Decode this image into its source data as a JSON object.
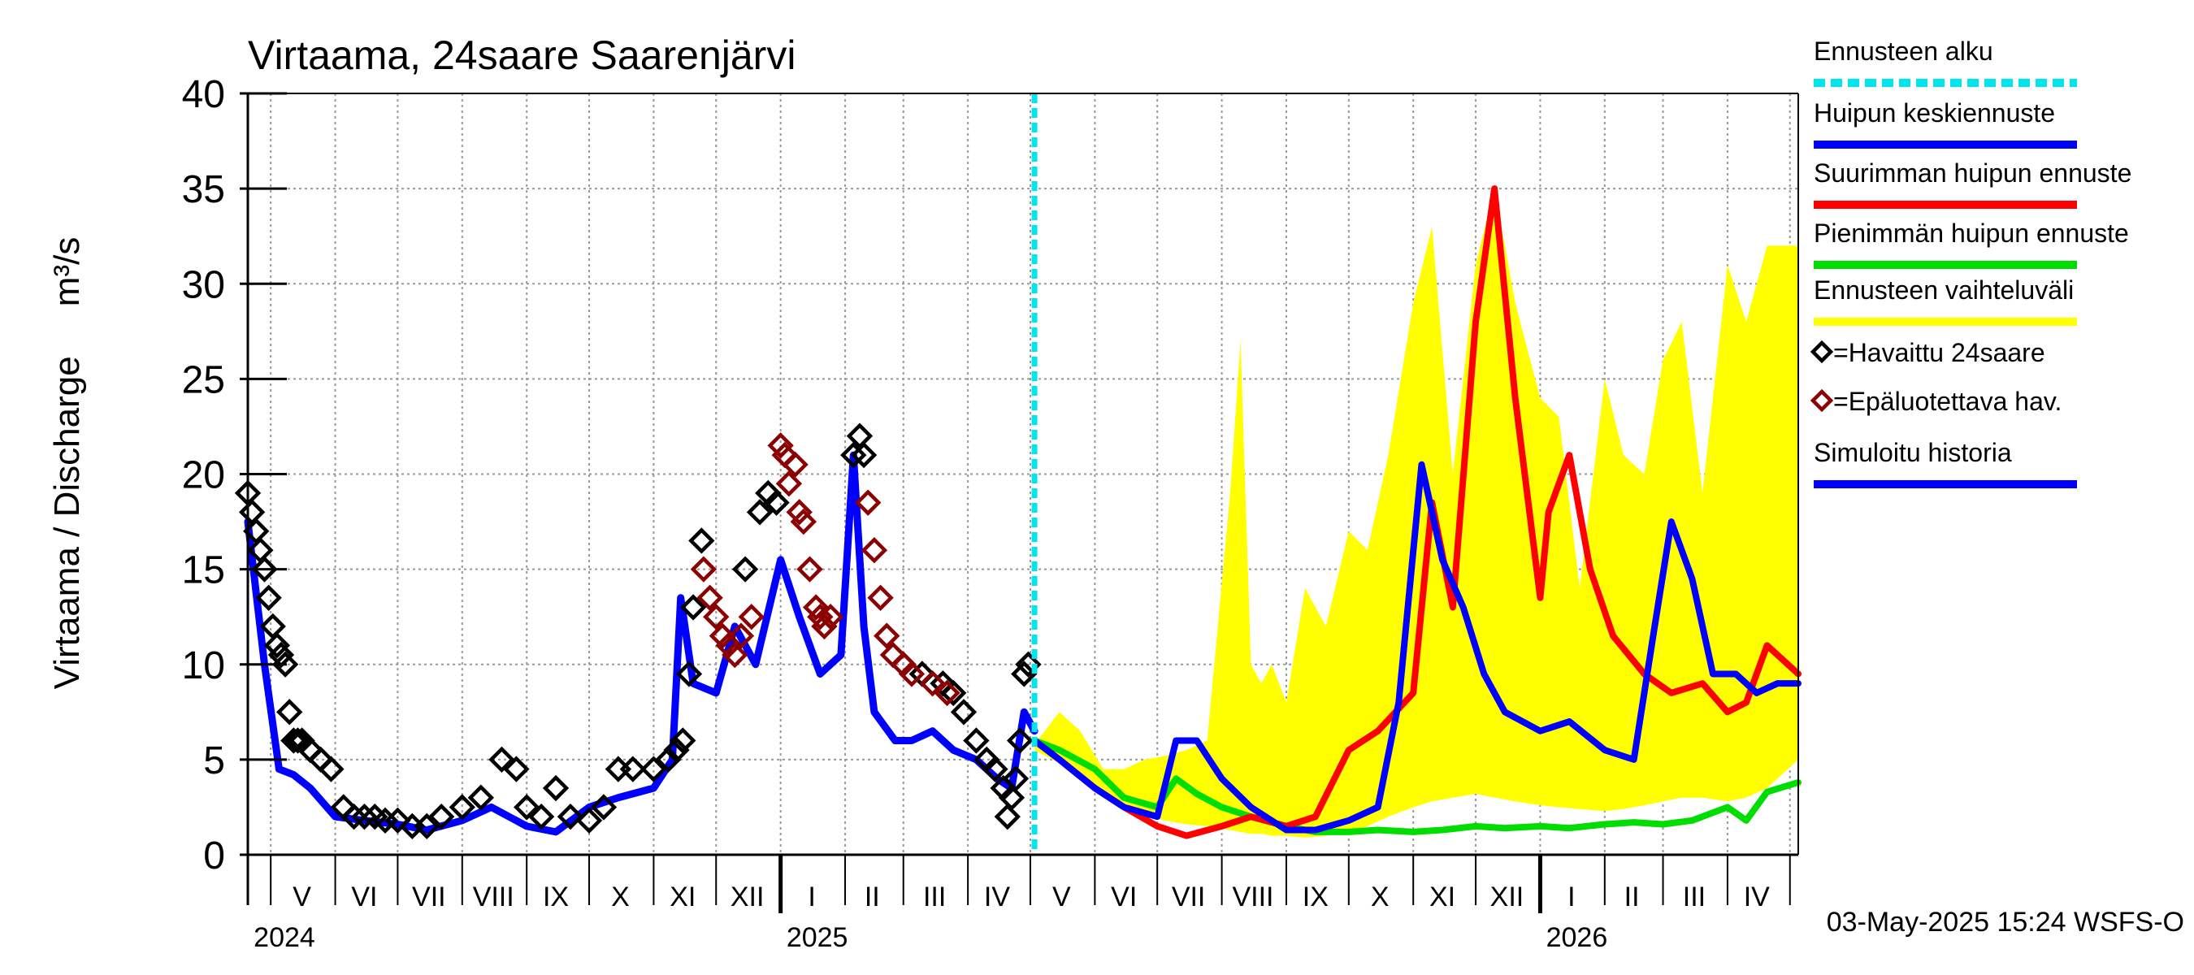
{
  "colors": {
    "observed": "#000000",
    "unreliable": "#8b0000",
    "simulated": "#0000ff",
    "mean_forecast": "#0000ff",
    "max_forecast": "#ff0000",
    "min_forecast": "#00dd00",
    "range": "#ffff00",
    "forecast_start": "#00e5ee",
    "grid": "#999999"
  },
  "chart_data": {
    "type": "line",
    "title": "Virtaama, 24saare Saarenjärvi",
    "ylabel": "Virtaama / Discharge     m³/s",
    "ylim": [
      0,
      40
    ],
    "yticks": [
      0,
      5,
      10,
      15,
      20,
      25,
      30,
      35,
      40
    ],
    "xlim": [
      "2024-04-20",
      "2026-05-05"
    ],
    "forecast_start": "2025-05-03",
    "grid": true,
    "legend_position": "right",
    "month_labels": [
      {
        "label": "V",
        "date": "2024-05-16"
      },
      {
        "label": "VI",
        "date": "2024-06-15"
      },
      {
        "label": "VII",
        "date": "2024-07-16"
      },
      {
        "label": "VIII",
        "date": "2024-08-16"
      },
      {
        "label": "IX",
        "date": "2024-09-15"
      },
      {
        "label": "X",
        "date": "2024-10-16"
      },
      {
        "label": "XI",
        "date": "2024-11-15"
      },
      {
        "label": "XII",
        "date": "2024-12-16"
      },
      {
        "label": "I",
        "date": "2025-01-16"
      },
      {
        "label": "II",
        "date": "2025-02-14"
      },
      {
        "label": "III",
        "date": "2025-03-16"
      },
      {
        "label": "IV",
        "date": "2025-04-15"
      },
      {
        "label": "V",
        "date": "2025-05-16"
      },
      {
        "label": "VI",
        "date": "2025-06-15"
      },
      {
        "label": "VII",
        "date": "2025-07-16"
      },
      {
        "label": "VIII",
        "date": "2025-08-16"
      },
      {
        "label": "IX",
        "date": "2025-09-15"
      },
      {
        "label": "X",
        "date": "2025-10-16"
      },
      {
        "label": "XI",
        "date": "2025-11-15"
      },
      {
        "label": "XII",
        "date": "2025-12-16"
      },
      {
        "label": "I",
        "date": "2026-01-16"
      },
      {
        "label": "II",
        "date": "2026-02-14"
      },
      {
        "label": "III",
        "date": "2026-03-16"
      },
      {
        "label": "IV",
        "date": "2026-04-15"
      }
    ],
    "month_bounds": [
      "2024-05-01",
      "2024-06-01",
      "2024-07-01",
      "2024-08-01",
      "2024-09-01",
      "2024-10-01",
      "2024-11-01",
      "2024-12-01",
      "2025-01-01",
      "2025-02-01",
      "2025-03-01",
      "2025-04-01",
      "2025-05-01",
      "2025-06-01",
      "2025-07-01",
      "2025-08-01",
      "2025-09-01",
      "2025-10-01",
      "2025-11-01",
      "2025-12-01",
      "2026-01-01",
      "2026-02-01",
      "2026-03-01",
      "2026-04-01",
      "2026-05-01"
    ],
    "year_labels": [
      {
        "label": "2024",
        "date": "2024-05-01"
      },
      {
        "label": "2025",
        "date": "2025-01-01"
      },
      {
        "label": "2026",
        "date": "2026-01-01"
      }
    ],
    "series": [
      {
        "name": "Ennusteen vaihteluväli",
        "kind": "band",
        "x": [
          "2025-05-03",
          "2025-05-15",
          "2025-05-25",
          "2025-06-05",
          "2025-06-15",
          "2025-06-25",
          "2025-07-05",
          "2025-07-15",
          "2025-07-25",
          "2025-08-05",
          "2025-08-10",
          "2025-08-15",
          "2025-08-20",
          "2025-08-25",
          "2025-09-01",
          "2025-09-10",
          "2025-09-20",
          "2025-10-01",
          "2025-10-10",
          "2025-10-20",
          "2025-11-01",
          "2025-11-10",
          "2025-11-20",
          "2025-12-01",
          "2025-12-10",
          "2025-12-20",
          "2026-01-01",
          "2026-01-10",
          "2026-01-20",
          "2026-02-01",
          "2026-02-10",
          "2026-02-20",
          "2026-03-01",
          "2026-03-10",
          "2026-03-20",
          "2026-04-01",
          "2026-04-10",
          "2026-04-20",
          "2026-05-05"
        ],
        "low": [
          5.5,
          4.8,
          4.0,
          3.2,
          2.5,
          2.0,
          1.8,
          1.6,
          1.5,
          1.3,
          1.2,
          1.1,
          1.1,
          1.0,
          1.0,
          0.9,
          1.0,
          1.2,
          1.5,
          2.0,
          2.5,
          2.8,
          3.0,
          3.2,
          3.0,
          2.8,
          2.6,
          2.5,
          2.4,
          2.3,
          2.4,
          2.6,
          2.8,
          3.0,
          3.0,
          2.8,
          3.0,
          3.5,
          5.0
        ],
        "high": [
          5.8,
          7.5,
          6.5,
          4.5,
          4.5,
          5.0,
          5.2,
          5.5,
          6.0,
          19.0,
          27.0,
          10.0,
          9.0,
          10.0,
          8.0,
          14.0,
          12.0,
          17.0,
          16.0,
          21.0,
          29.0,
          33.0,
          20.0,
          31.0,
          35.0,
          29.0,
          24.0,
          23.0,
          14.0,
          25.0,
          21.0,
          20.0,
          26.0,
          28.0,
          19.0,
          31.0,
          28.0,
          32.0,
          32.0
        ]
      },
      {
        "name": "Simuloitu historia",
        "x": [
          "2024-04-20",
          "2024-04-28",
          "2024-05-05",
          "2024-05-12",
          "2024-05-20",
          "2024-06-01",
          "2024-06-15",
          "2024-07-01",
          "2024-07-15",
          "2024-08-01",
          "2024-08-15",
          "2024-09-01",
          "2024-09-15",
          "2024-10-01",
          "2024-10-15",
          "2024-11-01",
          "2024-11-10",
          "2024-11-14",
          "2024-11-20",
          "2024-12-01",
          "2024-12-10",
          "2024-12-20",
          "2025-01-01",
          "2025-01-10",
          "2025-01-20",
          "2025-01-30",
          "2025-02-05",
          "2025-02-10",
          "2025-02-15",
          "2025-02-25",
          "2025-03-05",
          "2025-03-15",
          "2025-03-25",
          "2025-04-05",
          "2025-04-15",
          "2025-04-22",
          "2025-04-28",
          "2025-05-03"
        ],
        "y": [
          17.5,
          10.0,
          4.5,
          4.2,
          3.5,
          2.0,
          1.8,
          1.6,
          1.3,
          1.8,
          2.5,
          1.5,
          1.2,
          2.5,
          3.0,
          3.5,
          5.0,
          13.5,
          9.0,
          8.5,
          12.0,
          10.0,
          15.5,
          12.5,
          9.5,
          10.5,
          21.0,
          12.0,
          7.5,
          6.0,
          6.0,
          6.5,
          5.5,
          5.0,
          4.0,
          3.5,
          7.5,
          6.5
        ]
      },
      {
        "name": "Huipun keskiennuste",
        "x": [
          "2025-05-03",
          "2025-05-15",
          "2025-06-01",
          "2025-06-15",
          "2025-07-01",
          "2025-07-10",
          "2025-07-20",
          "2025-08-01",
          "2025-08-15",
          "2025-09-01",
          "2025-09-15",
          "2025-10-01",
          "2025-10-15",
          "2025-10-25",
          "2025-11-05",
          "2025-11-15",
          "2025-11-25",
          "2025-12-05",
          "2025-12-15",
          "2026-01-01",
          "2026-01-15",
          "2026-02-01",
          "2026-02-15",
          "2026-02-25",
          "2026-03-05",
          "2026-03-15",
          "2026-03-25",
          "2026-04-05",
          "2026-04-15",
          "2026-04-25",
          "2026-05-05"
        ],
        "y": [
          6.0,
          5.0,
          3.5,
          2.5,
          2.0,
          6.0,
          6.0,
          4.0,
          2.5,
          1.3,
          1.3,
          1.8,
          2.5,
          8.0,
          20.5,
          15.5,
          13.0,
          9.5,
          7.5,
          6.5,
          7.0,
          5.5,
          5.0,
          12.0,
          17.5,
          14.5,
          9.5,
          9.5,
          8.5,
          9.0,
          9.0
        ]
      },
      {
        "name": "Suurimman huipun ennuste",
        "x": [
          "2025-05-03",
          "2025-05-15",
          "2025-06-01",
          "2025-06-15",
          "2025-07-01",
          "2025-07-15",
          "2025-08-01",
          "2025-08-15",
          "2025-09-01",
          "2025-09-15",
          "2025-10-01",
          "2025-10-15",
          "2025-11-01",
          "2025-11-10",
          "2025-11-20",
          "2025-12-01",
          "2025-12-10",
          "2025-12-20",
          "2026-01-01",
          "2026-01-05",
          "2026-01-15",
          "2026-01-25",
          "2026-02-05",
          "2026-02-20",
          "2026-03-05",
          "2026-03-20",
          "2026-04-01",
          "2026-04-10",
          "2026-04-20",
          "2026-05-05"
        ],
        "y": [
          6.0,
          5.0,
          3.5,
          2.5,
          1.5,
          1.0,
          1.5,
          2.0,
          1.5,
          2.0,
          5.5,
          6.5,
          8.5,
          18.5,
          13.0,
          28.0,
          35.0,
          24.0,
          13.5,
          18.0,
          21.0,
          15.0,
          11.5,
          9.5,
          8.5,
          9.0,
          7.5,
          8.0,
          11.0,
          9.5
        ]
      },
      {
        "name": "Pienimmän huipun ennuste",
        "x": [
          "2025-05-03",
          "2025-05-15",
          "2025-06-01",
          "2025-06-15",
          "2025-07-01",
          "2025-07-10",
          "2025-07-20",
          "2025-08-01",
          "2025-08-15",
          "2025-09-01",
          "2025-09-15",
          "2025-10-01",
          "2025-10-15",
          "2025-11-01",
          "2025-11-15",
          "2025-12-01",
          "2025-12-15",
          "2026-01-01",
          "2026-01-15",
          "2026-02-01",
          "2026-02-15",
          "2026-03-01",
          "2026-03-15",
          "2026-04-01",
          "2026-04-10",
          "2026-04-20",
          "2026-05-05"
        ],
        "y": [
          6.0,
          5.5,
          4.5,
          3.0,
          2.5,
          4.0,
          3.2,
          2.5,
          2.0,
          1.5,
          1.2,
          1.2,
          1.3,
          1.2,
          1.3,
          1.5,
          1.4,
          1.5,
          1.4,
          1.6,
          1.7,
          1.6,
          1.8,
          2.5,
          1.8,
          3.3,
          3.8
        ]
      },
      {
        "name": "=Havaittu 24saare",
        "kind": "markers",
        "x": [
          "2024-04-20",
          "2024-04-22",
          "2024-04-24",
          "2024-04-26",
          "2024-04-28",
          "2024-04-30",
          "2024-05-02",
          "2024-05-04",
          "2024-05-06",
          "2024-05-08",
          "2024-05-10",
          "2024-05-12",
          "2024-05-14",
          "2024-05-16",
          "2024-05-20",
          "2024-05-25",
          "2024-05-30",
          "2024-06-05",
          "2024-06-10",
          "2024-06-15",
          "2024-06-20",
          "2024-06-25",
          "2024-07-01",
          "2024-07-08",
          "2024-07-15",
          "2024-07-22",
          "2024-08-01",
          "2024-08-10",
          "2024-08-20",
          "2024-08-27",
          "2024-09-01",
          "2024-09-08",
          "2024-09-15",
          "2024-09-22",
          "2024-10-01",
          "2024-10-08",
          "2024-10-15",
          "2024-10-22",
          "2024-11-01",
          "2024-11-08",
          "2024-11-12",
          "2024-11-15",
          "2024-11-18",
          "2024-11-20",
          "2024-11-24",
          "2024-12-15",
          "2024-12-22",
          "2024-12-26",
          "2024-12-30",
          "2025-02-05",
          "2025-02-08",
          "2025-02-10",
          "2025-03-10",
          "2025-03-20",
          "2025-03-25",
          "2025-03-30",
          "2025-04-05",
          "2025-04-10",
          "2025-04-14",
          "2025-04-18",
          "2025-04-20",
          "2025-04-22",
          "2025-04-24",
          "2025-04-26",
          "2025-04-28",
          "2025-04-30"
        ],
        "y": [
          19.0,
          18.0,
          17.0,
          16.0,
          15.0,
          13.5,
          12.0,
          11.0,
          10.5,
          10.0,
          7.5,
          6.0,
          6.0,
          6.0,
          5.5,
          5.0,
          4.5,
          2.5,
          2.0,
          2.0,
          2.0,
          1.8,
          1.8,
          1.5,
          1.5,
          2.0,
          2.5,
          3.0,
          5.0,
          4.5,
          2.5,
          2.0,
          3.5,
          2.0,
          1.8,
          2.5,
          4.5,
          4.5,
          4.5,
          5.0,
          5.5,
          6.0,
          9.5,
          13.0,
          16.5,
          15.0,
          18.0,
          19.0,
          18.5,
          21.0,
          22.0,
          21.0,
          9.5,
          9.0,
          8.5,
          7.5,
          6.0,
          5.0,
          4.5,
          3.5,
          2.0,
          3.0,
          4.0,
          6.0,
          9.5,
          10.0
        ]
      },
      {
        "name": "=Epäluotettava hav.",
        "kind": "markers",
        "x": [
          "2024-11-25",
          "2024-11-28",
          "2024-12-01",
          "2024-12-04",
          "2024-12-07",
          "2024-12-10",
          "2024-12-13",
          "2024-12-18",
          "2025-01-01",
          "2025-01-03",
          "2025-01-05",
          "2025-01-08",
          "2025-01-10",
          "2025-01-12",
          "2025-01-15",
          "2025-01-18",
          "2025-01-20",
          "2025-01-22",
          "2025-01-25",
          "2025-02-12",
          "2025-02-15",
          "2025-02-18",
          "2025-02-21",
          "2025-02-24",
          "2025-03-01",
          "2025-03-05",
          "2025-03-15",
          "2025-03-22"
        ],
        "y": [
          15.0,
          13.5,
          12.5,
          11.5,
          11.0,
          10.5,
          11.5,
          12.5,
          21.5,
          21.0,
          19.5,
          20.5,
          18.0,
          17.5,
          15.0,
          13.0,
          12.5,
          12.0,
          12.5,
          18.5,
          16.0,
          13.5,
          11.5,
          10.5,
          10.0,
          9.5,
          9.0,
          8.5
        ]
      }
    ]
  },
  "legend": {
    "items": [
      {
        "label": "Ennusteen alku",
        "style": "dash",
        "color_key": "forecast_start"
      },
      {
        "label": "Huipun keskiennuste",
        "style": "line",
        "color_key": "mean_forecast"
      },
      {
        "label": "Suurimman huipun ennuste",
        "style": "line",
        "color_key": "max_forecast"
      },
      {
        "label": "Pienimmän huipun ennuste",
        "style": "line",
        "color_key": "min_forecast"
      },
      {
        "label": "Ennusteen vaihteluväli",
        "style": "line",
        "color_key": "range"
      },
      {
        "label": "=Havaittu 24saare",
        "style": "marker",
        "color_key": "observed"
      },
      {
        "label": "=Epäluotettava hav.",
        "style": "marker",
        "color_key": "unreliable"
      },
      {
        "label": "Simuloitu historia",
        "style": "line",
        "color_key": "simulated"
      }
    ]
  },
  "footer": {
    "timestamp": "03-May-2025 15:24 WSFS-O"
  }
}
